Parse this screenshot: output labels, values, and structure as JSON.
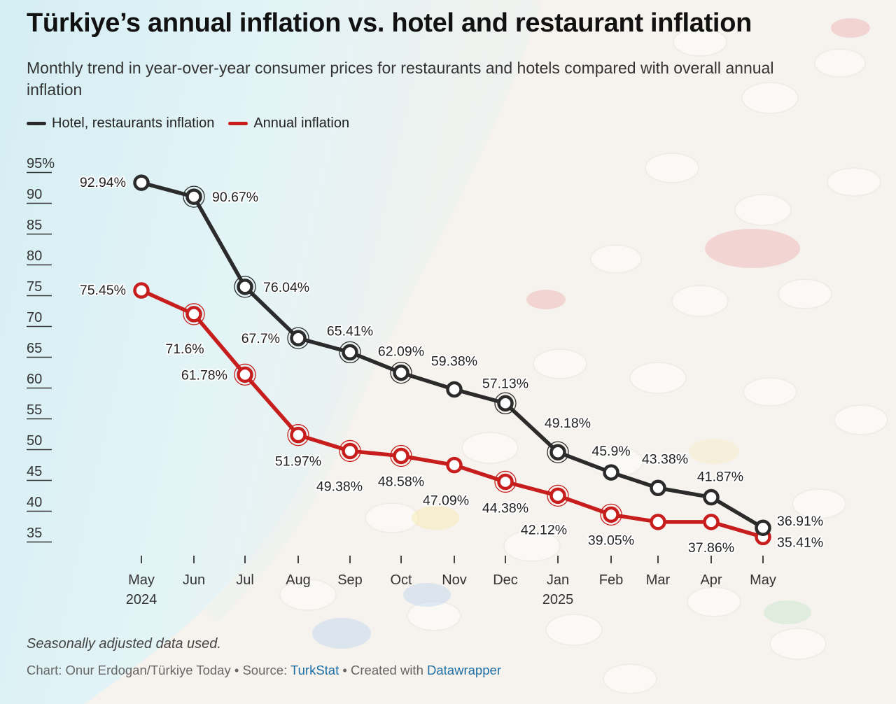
{
  "title": "Türkiye’s annual inflation vs. hotel and restaurant inflation",
  "subtitle": "Monthly trend in year-over-year consumer prices for restaurants and hotels compared with overall annual inflation",
  "legend": [
    {
      "label": "Hotel, restaurants inflation",
      "color": "#2b2b2b"
    },
    {
      "label": "Annual inflation",
      "color": "#c71e1d"
    }
  ],
  "note": "Seasonally adjusted data used.",
  "credits": {
    "prefix": "Chart: Onur Erdogan/Türkiye Today • Source: ",
    "source_link": "TurkStat",
    "middle": " • Created with ",
    "tool_link": "Datawrapper"
  },
  "chart_data": {
    "type": "line",
    "title": "Türkiye’s annual inflation vs. hotel and restaurant inflation",
    "x": [
      "May",
      "Jun",
      "Jul",
      "Aug",
      "Sep",
      "Oct",
      "Nov",
      "Dec",
      "Jan",
      "Feb",
      "Mar",
      "Apr",
      "May"
    ],
    "x_year_labels": [
      "2024",
      "",
      "",
      "",
      "",
      "",
      "",
      "",
      "2025",
      "",
      "",
      "",
      ""
    ],
    "y_ticks": [
      "95%",
      "90",
      "85",
      "80",
      "75",
      "70",
      "65",
      "60",
      "55",
      "50",
      "45",
      "40",
      "35"
    ],
    "ylim": [
      35,
      95
    ],
    "grid": false,
    "legend_position": "top-left",
    "series": [
      {
        "name": "Hotel, restaurants inflation",
        "color": "#2b2b2b",
        "values": [
          92.94,
          90.67,
          76.04,
          67.7,
          65.41,
          62.09,
          59.38,
          57.13,
          49.18,
          45.9,
          43.38,
          41.87,
          36.91
        ],
        "labels": [
          "92.94%",
          "90.67%",
          "76.04%",
          "67.7%",
          "65.41%",
          "62.09%",
          "59.38%",
          "57.13%",
          "49.18%",
          "45.9%",
          "43.38%",
          "41.87%",
          "36.91%"
        ],
        "ringed": [
          false,
          true,
          true,
          true,
          true,
          true,
          false,
          true,
          true,
          false,
          false,
          false,
          false
        ]
      },
      {
        "name": "Annual inflation",
        "color": "#c71e1d",
        "values": [
          75.45,
          71.6,
          61.78,
          51.97,
          49.38,
          48.58,
          47.09,
          44.38,
          42.12,
          39.05,
          37.86,
          37.86,
          35.41
        ],
        "labels": [
          "75.45%",
          "71.6%",
          "61.78%",
          "51.97%",
          "49.38%",
          "48.58%",
          "47.09%",
          "44.38%",
          "42.12%",
          "39.05%",
          "",
          "37.86%",
          "35.41%"
        ],
        "ringed": [
          false,
          true,
          true,
          true,
          true,
          true,
          false,
          true,
          true,
          true,
          false,
          false,
          false
        ]
      }
    ]
  }
}
